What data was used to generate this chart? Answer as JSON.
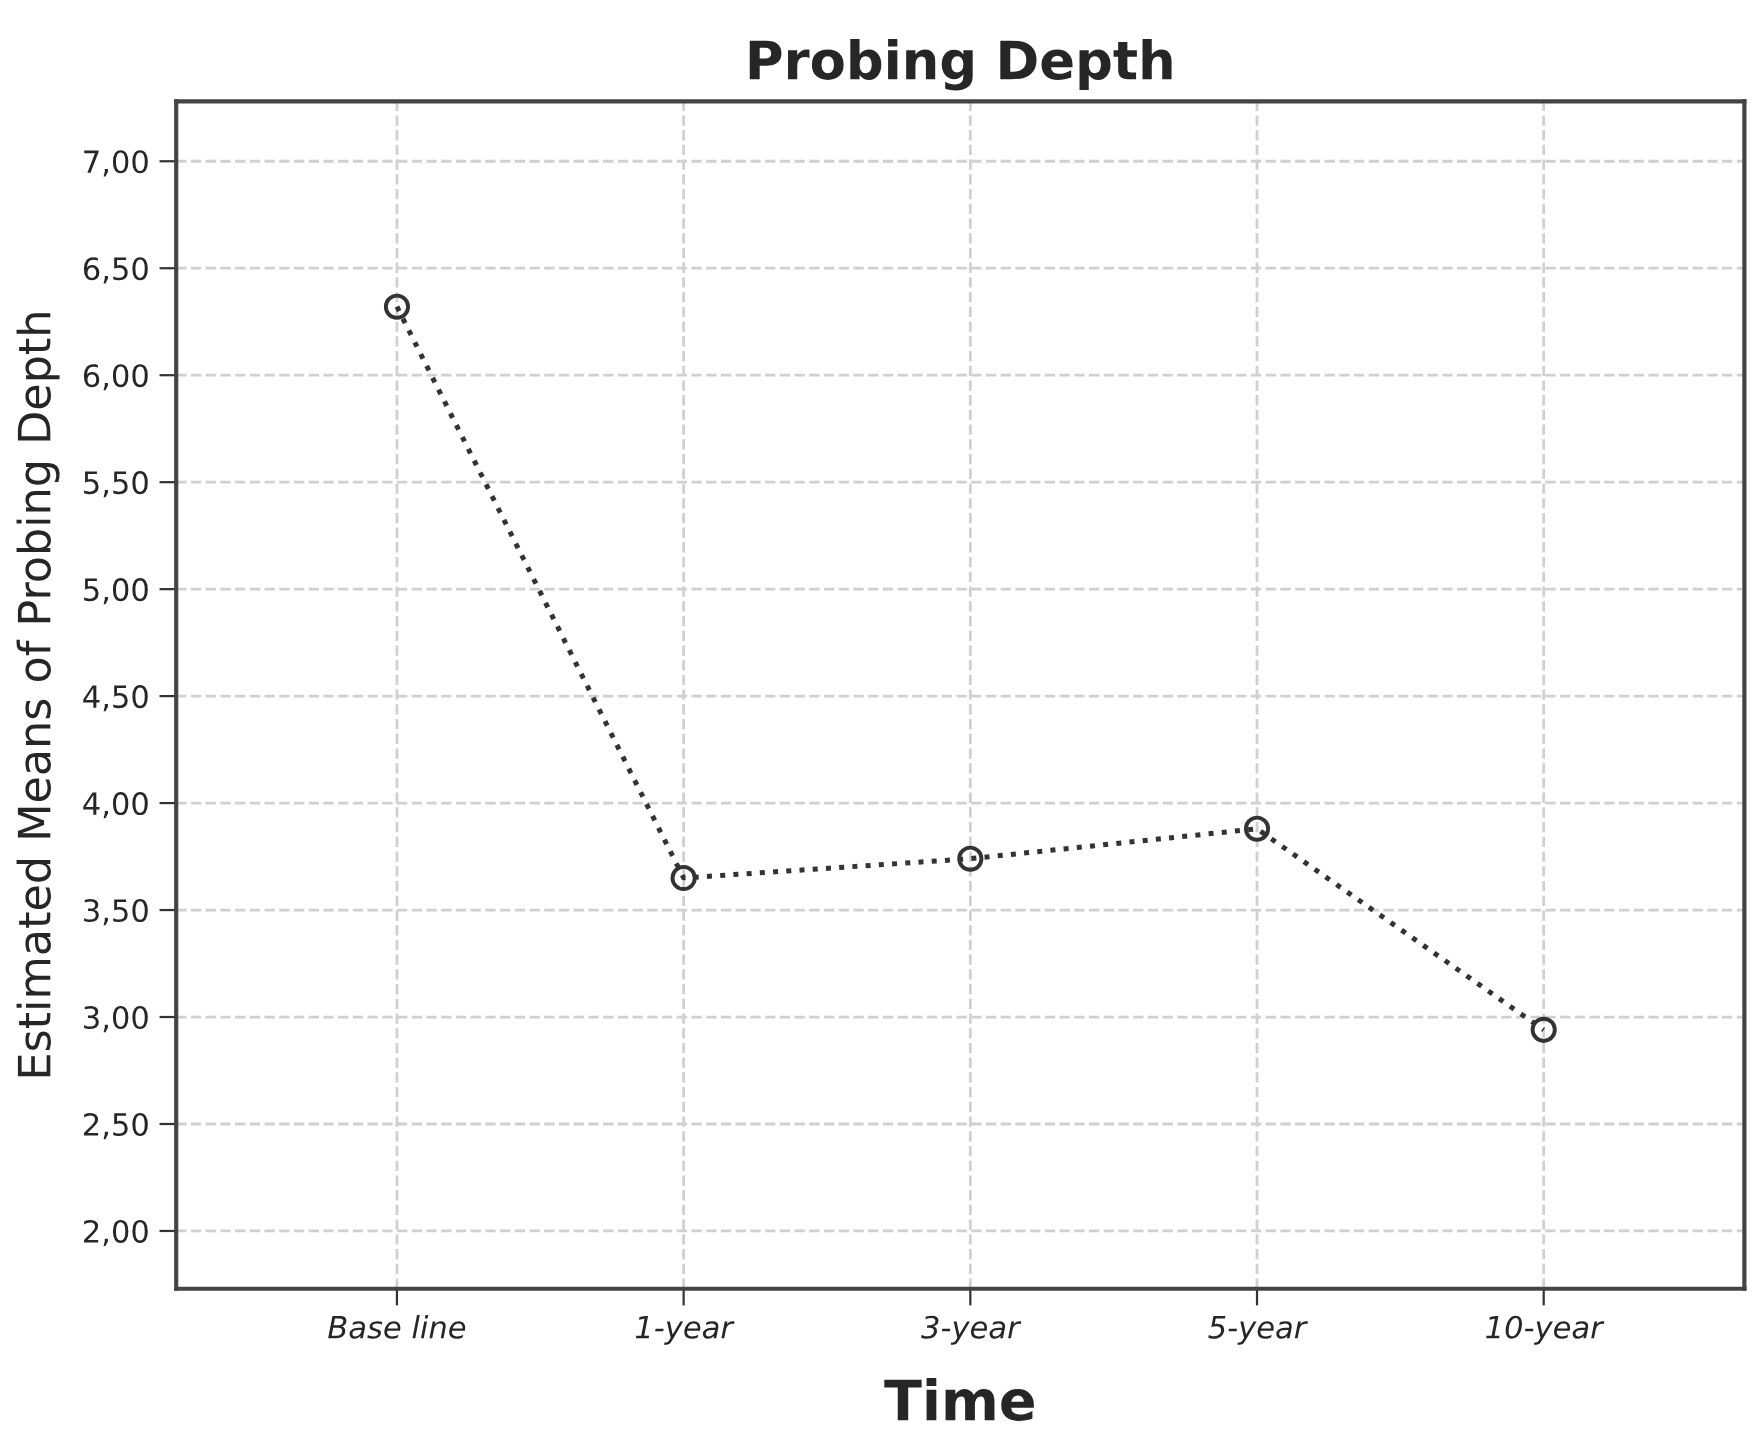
{
  "chart_data": {
    "type": "line",
    "title": "Probing Depth",
    "xlabel": "Time",
    "ylabel": "Estimated Means of Probing Depth",
    "categories": [
      "Base line",
      "1-year",
      "3-year",
      "5-year",
      "10-year"
    ],
    "series": [
      {
        "color": "#333333",
        "values": [
          6.32,
          3.65,
          3.74,
          3.88,
          2.94
        ]
      }
    ],
    "ylim": [
      1.73,
      7.28
    ],
    "yticks": [
      {
        "value": 2.0,
        "label": "2,00"
      },
      {
        "value": 2.5,
        "label": "2,50"
      },
      {
        "value": 3.0,
        "label": "3,00"
      },
      {
        "value": 3.5,
        "label": "3,50"
      },
      {
        "value": 4.0,
        "label": "4,00"
      },
      {
        "value": 4.5,
        "label": "4,50"
      },
      {
        "value": 5.0,
        "label": "5,00"
      },
      {
        "value": 5.5,
        "label": "5,50"
      },
      {
        "value": 6.0,
        "label": "6,00"
      },
      {
        "value": 6.5,
        "label": "6,50"
      },
      {
        "value": 7.0,
        "label": "7,00"
      }
    ],
    "grid": true,
    "marker": "circle",
    "line_style": "dotted"
  }
}
